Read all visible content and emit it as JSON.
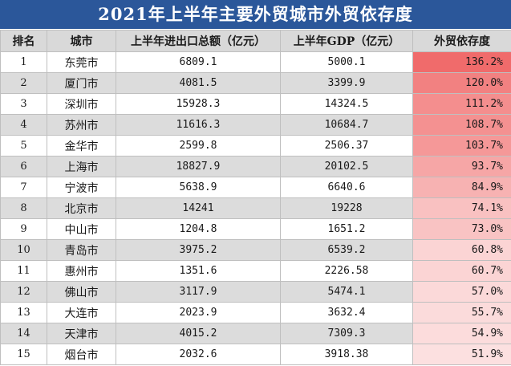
{
  "title": "2021年上半年主要外贸城市外贸依存度",
  "columns": [
    "排名",
    "城市",
    "上半年进出口总额（亿元）",
    "上半年GDP（亿元）",
    "外贸依存度"
  ],
  "rows": [
    {
      "rank": "1",
      "city": "东莞市",
      "trade": "6809.1",
      "gdp": "5000.1",
      "ratio": "136.2%",
      "value": 136.2
    },
    {
      "rank": "2",
      "city": "厦门市",
      "trade": "4081.5",
      "gdp": "3399.9",
      "ratio": "120.0%",
      "value": 120.0
    },
    {
      "rank": "3",
      "city": "深圳市",
      "trade": "15928.3",
      "gdp": "14324.5",
      "ratio": "111.2%",
      "value": 111.2
    },
    {
      "rank": "4",
      "city": "苏州市",
      "trade": "11616.3",
      "gdp": "10684.7",
      "ratio": "108.7%",
      "value": 108.7
    },
    {
      "rank": "5",
      "city": "金华市",
      "trade": "2599.8",
      "gdp": "2506.37",
      "ratio": "103.7%",
      "value": 103.7
    },
    {
      "rank": "6",
      "city": "上海市",
      "trade": "18827.9",
      "gdp": "20102.5",
      "ratio": "93.7%",
      "value": 93.7
    },
    {
      "rank": "7",
      "city": "宁波市",
      "trade": "5638.9",
      "gdp": "6640.6",
      "ratio": "84.9%",
      "value": 84.9
    },
    {
      "rank": "8",
      "city": "北京市",
      "trade": "14241",
      "gdp": "19228",
      "ratio": "74.1%",
      "value": 74.1
    },
    {
      "rank": "9",
      "city": "中山市",
      "trade": "1204.8",
      "gdp": "1651.2",
      "ratio": "73.0%",
      "value": 73.0
    },
    {
      "rank": "10",
      "city": "青岛市",
      "trade": "3975.2",
      "gdp": "6539.2",
      "ratio": "60.8%",
      "value": 60.8
    },
    {
      "rank": "11",
      "city": "惠州市",
      "trade": "1351.6",
      "gdp": "2226.58",
      "ratio": "60.7%",
      "value": 60.7
    },
    {
      "rank": "12",
      "city": "佛山市",
      "trade": "3117.9",
      "gdp": "5474.1",
      "ratio": "57.0%",
      "value": 57.0
    },
    {
      "rank": "13",
      "city": "大连市",
      "trade": "2023.9",
      "gdp": "3632.4",
      "ratio": "55.7%",
      "value": 55.7
    },
    {
      "rank": "14",
      "city": "天津市",
      "trade": "4015.2",
      "gdp": "7309.3",
      "ratio": "54.9%",
      "value": 54.9
    },
    {
      "rank": "15",
      "city": "烟台市",
      "trade": "2032.6",
      "gdp": "3918.38",
      "ratio": "51.9%",
      "value": 51.9
    }
  ],
  "colors": {
    "title_bg": "#2b579a",
    "header_bg": "#d9d9d9",
    "stripe": "#dcdcdc",
    "heat_high": "#f06b6b",
    "heat_low": "#fce0e0"
  }
}
